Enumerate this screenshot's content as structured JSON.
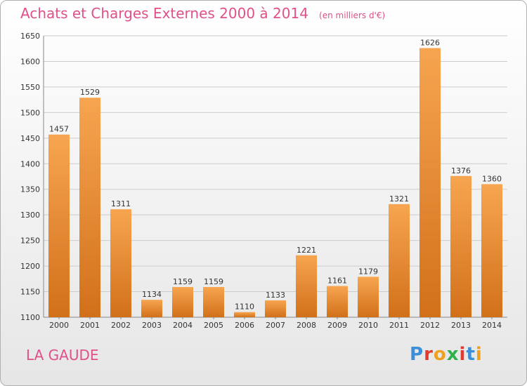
{
  "title": "Achats et Charges Externes 2000 à 2014",
  "unit": "(en milliers d'€)",
  "location": "LA GAUDE",
  "brand": {
    "text": "Proxiti",
    "letter_colors": [
      "#3a8fd8",
      "#e23a2e",
      "#f0a020",
      "#2eb04a",
      "#e23a2e",
      "#3a8fd8",
      "#f0a020"
    ]
  },
  "colors": {
    "bar_top": "#f7a550",
    "bar_bottom": "#d2701a",
    "grid": "#cccccc",
    "text": "#333333",
    "title": "#e0508a"
  },
  "chart_data": {
    "type": "bar",
    "categories": [
      "2000",
      "2001",
      "2002",
      "2003",
      "2004",
      "2005",
      "2006",
      "2007",
      "2008",
      "2009",
      "2010",
      "2011",
      "2012",
      "2013",
      "2014"
    ],
    "values": [
      1457,
      1529,
      1311,
      1134,
      1159,
      1159,
      1110,
      1133,
      1221,
      1161,
      1179,
      1321,
      1626,
      1376,
      1360
    ],
    "ylim": [
      1100,
      1650
    ],
    "yticks": [
      1100,
      1150,
      1200,
      1250,
      1300,
      1350,
      1400,
      1450,
      1500,
      1550,
      1600,
      1650
    ],
    "grid": true,
    "title": "Achats et Charges Externes 2000 à 2014",
    "xlabel": "",
    "ylabel": ""
  }
}
